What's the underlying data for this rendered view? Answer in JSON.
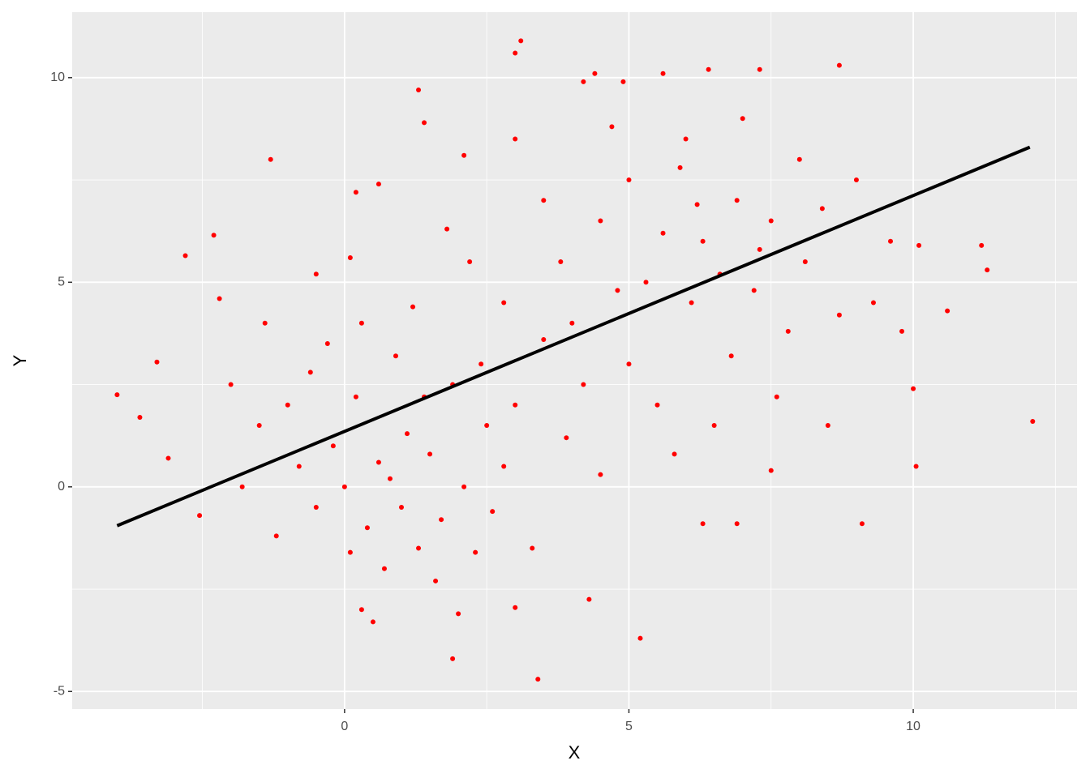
{
  "chart_data": {
    "type": "scatter",
    "x_label": "X",
    "y_label": "Y",
    "xlim": [
      -4.79,
      12.88
    ],
    "ylim": [
      -5.43,
      11.6
    ],
    "xticks": [
      0,
      5,
      10
    ],
    "yticks": [
      -5,
      0,
      5,
      10
    ],
    "minor_xticks": [
      -2.5,
      2.5,
      7.5,
      12.5
    ],
    "minor_yticks": [
      -2.5,
      2.5,
      7.5
    ],
    "grid": true,
    "color": "#ff0000",
    "x": [
      -4.0,
      -3.6,
      -3.3,
      -3.1,
      -2.8,
      -2.55,
      -2.3,
      -2.2,
      -1.3,
      -0.5,
      0.1,
      0.2,
      0.3,
      0.5,
      0.6,
      1.3,
      1.4,
      1.9,
      2.1,
      3.0,
      3.1,
      3.4,
      4.2,
      4.4,
      4.9,
      5.2,
      5.6,
      6.4,
      7.3,
      8.7,
      9.1,
      9.8,
      10.0,
      10.05,
      10.1,
      10.6,
      11.2,
      11.3,
      12.1,
      7.5,
      6.9,
      6.3,
      3.0,
      4.3,
      2.0,
      -1.5,
      -1.0,
      -0.8,
      -0.5,
      -0.2,
      0.0,
      0.2,
      0.4,
      0.6,
      0.8,
      1.0,
      1.1,
      1.3,
      1.5,
      1.7,
      1.9,
      2.1,
      2.3,
      2.5,
      0.9,
      -0.3,
      0.7,
      1.6,
      -1.8,
      -2.0,
      -1.2,
      0.3,
      1.2,
      2.4,
      2.8,
      3.0,
      2.6,
      -0.6,
      0.1,
      1.4,
      3.3,
      3.5,
      2.2,
      1.8,
      -1.4,
      4.0,
      4.5,
      5.0,
      5.3,
      5.6,
      5.9,
      6.1,
      6.3,
      6.6,
      6.9,
      7.2,
      7.5,
      7.8,
      8.1,
      8.4,
      8.7,
      9.0,
      5.0,
      4.7,
      6.0,
      7.0,
      5.5,
      6.5,
      4.2,
      3.8,
      3.5,
      4.8,
      6.8,
      7.6,
      8.5,
      9.3,
      9.6,
      5.8,
      4.5,
      3.0,
      2.8,
      3.9,
      8.0,
      7.3,
      6.2
    ],
    "values": [
      2.25,
      1.7,
      3.05,
      0.7,
      5.65,
      -0.7,
      6.15,
      4.6,
      8.0,
      5.2,
      5.6,
      7.2,
      -3.0,
      -3.3,
      7.4,
      9.7,
      8.9,
      -4.2,
      8.1,
      10.6,
      10.9,
      -4.7,
      9.9,
      10.1,
      9.9,
      -3.7,
      10.1,
      10.2,
      10.2,
      10.3,
      -0.9,
      3.8,
      2.4,
      0.5,
      5.9,
      4.3,
      5.9,
      5.3,
      1.6,
      0.4,
      -0.9,
      -0.9,
      -2.95,
      -2.75,
      -3.1,
      1.5,
      2.0,
      0.5,
      -0.5,
      1.0,
      0.0,
      2.2,
      -1.0,
      0.6,
      0.2,
      -0.5,
      1.3,
      -1.5,
      0.8,
      -0.8,
      2.5,
      0.0,
      -1.6,
      1.5,
      3.2,
      3.5,
      -2.0,
      -2.3,
      0.0,
      2.5,
      -1.2,
      4.0,
      4.4,
      3.0,
      0.5,
      2.0,
      -0.6,
      2.8,
      -1.6,
      2.2,
      -1.5,
      3.6,
      5.5,
      6.3,
      4.0,
      4.0,
      6.5,
      7.5,
      5.0,
      6.2,
      7.8,
      4.5,
      6.0,
      5.2,
      7.0,
      4.8,
      6.5,
      3.8,
      5.5,
      6.8,
      4.2,
      7.5,
      3.0,
      8.8,
      8.5,
      9.0,
      2.0,
      1.5,
      2.5,
      5.5,
      7.0,
      4.8,
      3.2,
      2.2,
      1.5,
      4.5,
      6.0,
      0.8,
      0.3,
      8.5,
      4.5,
      1.2,
      8.0,
      5.8,
      6.9
    ],
    "fit_line": {
      "x": [
        -4.0,
        12.05
      ],
      "values": [
        -0.95,
        8.3
      ],
      "color": "#000000"
    }
  }
}
